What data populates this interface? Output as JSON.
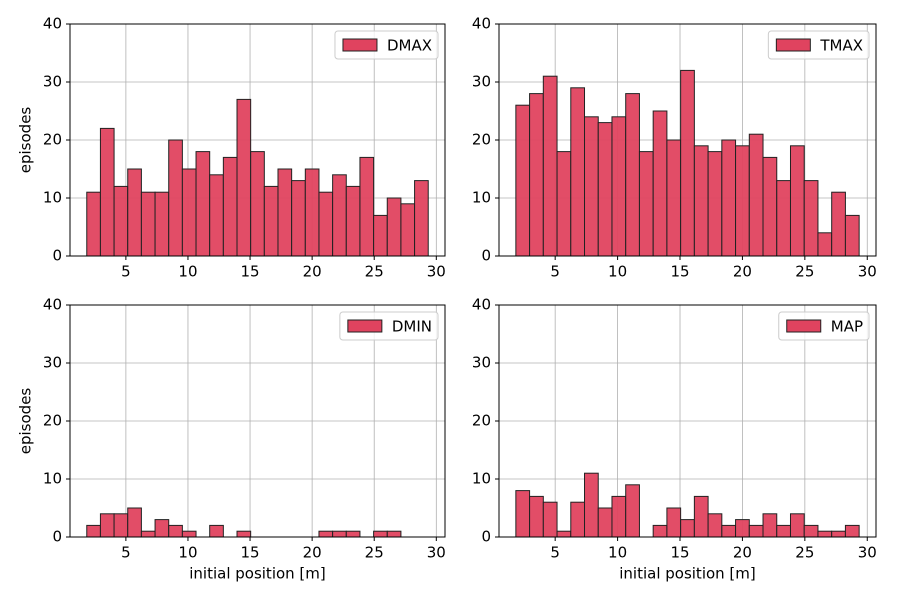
{
  "chart_data": [
    {
      "type": "histogram",
      "bins": [
        1.85,
        2.95,
        4.05,
        5.15,
        6.25,
        7.35,
        8.45,
        9.55,
        10.65,
        11.75,
        12.85,
        13.95,
        15.05,
        16.15,
        17.25,
        18.35,
        19.45,
        20.55,
        21.65,
        22.75,
        23.85,
        24.95,
        26.05,
        27.15,
        28.25,
        29.35
      ],
      "series": [
        {
          "name": "DMAX",
          "color": "#e0435f",
          "values": [
            11,
            22,
            12,
            15,
            11,
            11,
            20,
            15,
            18,
            14,
            17,
            27,
            18,
            12,
            15,
            13,
            15,
            11,
            14,
            12,
            17,
            7,
            10,
            9,
            13
          ]
        }
      ],
      "edgecolor": "#222222",
      "ylabel": "episodes",
      "xlim": [
        0.5,
        30.7
      ],
      "ylim": [
        0,
        40
      ],
      "xticks": [
        5,
        10,
        15,
        20,
        25,
        30
      ],
      "yticks": [
        0,
        10,
        20,
        30,
        40
      ],
      "grid": true,
      "legend": "upper right"
    },
    {
      "type": "histogram",
      "bins": [
        1.85,
        2.95,
        4.05,
        5.15,
        6.25,
        7.35,
        8.45,
        9.55,
        10.65,
        11.75,
        12.85,
        13.95,
        15.05,
        16.15,
        17.25,
        18.35,
        19.45,
        20.55,
        21.65,
        22.75,
        23.85,
        24.95,
        26.05,
        27.15,
        28.25,
        29.35
      ],
      "series": [
        {
          "name": "TMAX",
          "color": "#e0435f",
          "values": [
            26,
            28,
            31,
            18,
            29,
            24,
            23,
            24,
            28,
            18,
            25,
            20,
            32,
            19,
            18,
            20,
            19,
            21,
            17,
            13,
            19,
            13,
            4,
            11,
            7
          ]
        }
      ],
      "edgecolor": "#222222",
      "xlim": [
        0.5,
        30.7
      ],
      "ylim": [
        0,
        40
      ],
      "xticks": [
        5,
        10,
        15,
        20,
        25,
        30
      ],
      "yticks": [
        0,
        10,
        20,
        30,
        40
      ],
      "grid": true,
      "legend": "upper right"
    },
    {
      "type": "histogram",
      "bins": [
        1.85,
        2.95,
        4.05,
        5.15,
        6.25,
        7.35,
        8.45,
        9.55,
        10.65,
        11.75,
        12.85,
        13.95,
        15.05,
        16.15,
        17.25,
        18.35,
        19.45,
        20.55,
        21.65,
        22.75,
        23.85,
        24.95,
        26.05,
        27.15,
        28.25,
        29.35
      ],
      "series": [
        {
          "name": "DMIN",
          "color": "#e0435f",
          "values": [
            2,
            4,
            4,
            5,
            1,
            3,
            2,
            1,
            0,
            2,
            0,
            1,
            0,
            0,
            0,
            0,
            0,
            1,
            1,
            1,
            0,
            1,
            1,
            0,
            0
          ]
        }
      ],
      "edgecolor": "#222222",
      "ylabel": "episodes",
      "xlabel": "initial position [m]",
      "xlim": [
        0.5,
        30.7
      ],
      "ylim": [
        0,
        40
      ],
      "xticks": [
        5,
        10,
        15,
        20,
        25,
        30
      ],
      "yticks": [
        0,
        10,
        20,
        30,
        40
      ],
      "grid": true,
      "legend": "upper right"
    },
    {
      "type": "histogram",
      "bins": [
        1.85,
        2.95,
        4.05,
        5.15,
        6.25,
        7.35,
        8.45,
        9.55,
        10.65,
        11.75,
        12.85,
        13.95,
        15.05,
        16.15,
        17.25,
        18.35,
        19.45,
        20.55,
        21.65,
        22.75,
        23.85,
        24.95,
        26.05,
        27.15,
        28.25,
        29.35
      ],
      "series": [
        {
          "name": "MAP",
          "color": "#e0435f",
          "values": [
            8,
            7,
            6,
            1,
            6,
            11,
            5,
            7,
            9,
            0,
            2,
            5,
            3,
            7,
            4,
            2,
            3,
            2,
            4,
            2,
            4,
            2,
            1,
            1,
            2
          ]
        }
      ],
      "edgecolor": "#222222",
      "xlabel": "initial position [m]",
      "xlim": [
        0.5,
        30.7
      ],
      "ylim": [
        0,
        40
      ],
      "xticks": [
        5,
        10,
        15,
        20,
        25,
        30
      ],
      "yticks": [
        0,
        10,
        20,
        30,
        40
      ],
      "grid": true,
      "legend": "upper right"
    }
  ]
}
